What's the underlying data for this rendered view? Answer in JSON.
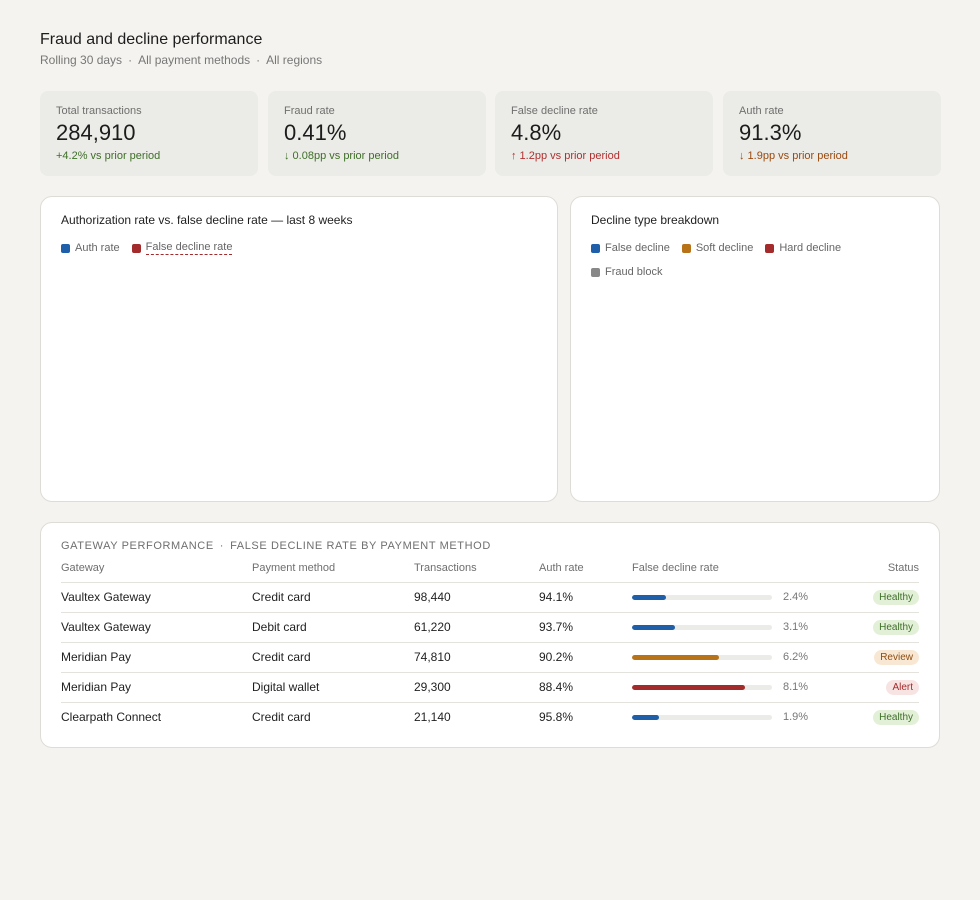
{
  "header": {
    "title": "Fraud and decline performance",
    "filters": [
      "Rolling 30 days",
      "All payment methods",
      "All regions"
    ]
  },
  "kpis": [
    {
      "label": "Total transactions",
      "value": "284,910",
      "delta": "+4.2% vs prior period",
      "tone": "pos"
    },
    {
      "label": "Fraud rate",
      "value": "0.41%",
      "delta": "↓ 0.08pp vs prior period",
      "tone": "pos"
    },
    {
      "label": "False decline rate",
      "value": "4.8%",
      "delta": "↑ 1.2pp vs prior period",
      "tone": "neg"
    },
    {
      "label": "Auth rate",
      "value": "91.3%",
      "delta": "↓ 1.9pp vs prior period",
      "tone": "warn"
    }
  ],
  "trend_card": {
    "title": "Authorization rate vs. false decline rate — last 8 weeks",
    "legend": [
      {
        "label": "Auth rate",
        "color": "#1f5ea8"
      },
      {
        "label": "False decline rate",
        "color": "#a32b2b"
      }
    ]
  },
  "breakdown_card": {
    "title": "Decline type breakdown",
    "legend": [
      {
        "label": "False decline",
        "color": "#1f5ea8"
      },
      {
        "label": "Soft decline",
        "color": "#b87319"
      },
      {
        "label": "Hard decline",
        "color": "#a32b2b"
      },
      {
        "label": "Fraud block",
        "color": "#888888"
      }
    ]
  },
  "gateway_table": {
    "heading": [
      "GATEWAY PERFORMANCE",
      "FALSE DECLINE RATE BY PAYMENT METHOD"
    ],
    "columns": [
      "Gateway",
      "Payment method",
      "Transactions",
      "Auth rate",
      "False decline rate",
      "Status"
    ],
    "rows": [
      {
        "gateway": "Vaultex Gateway",
        "method": "Credit card",
        "transactions": "98,440",
        "auth_rate": "94.1%",
        "false_decline": "2.4%",
        "fill": 0.24,
        "bar_color": "#1f5ea8",
        "status": "Healthy",
        "status_type": "healthy"
      },
      {
        "gateway": "Vaultex Gateway",
        "method": "Debit card",
        "transactions": "61,220",
        "auth_rate": "93.7%",
        "false_decline": "3.1%",
        "fill": 0.31,
        "bar_color": "#1f5ea8",
        "status": "Healthy",
        "status_type": "healthy"
      },
      {
        "gateway": "Meridian Pay",
        "method": "Credit card",
        "transactions": "74,810",
        "auth_rate": "90.2%",
        "false_decline": "6.2%",
        "fill": 0.62,
        "bar_color": "#b87319",
        "status": "Review",
        "status_type": "review"
      },
      {
        "gateway": "Meridian Pay",
        "method": "Digital wallet",
        "transactions": "29,300",
        "auth_rate": "88.4%",
        "false_decline": "8.1%",
        "fill": 0.81,
        "bar_color": "#a32b2b",
        "status": "Alert",
        "status_type": "alert"
      },
      {
        "gateway": "Clearpath Connect",
        "method": "Credit card",
        "transactions": "21,140",
        "auth_rate": "95.8%",
        "false_decline": "1.9%",
        "fill": 0.19,
        "bar_color": "#1f5ea8",
        "status": "Healthy",
        "status_type": "healthy"
      }
    ]
  }
}
